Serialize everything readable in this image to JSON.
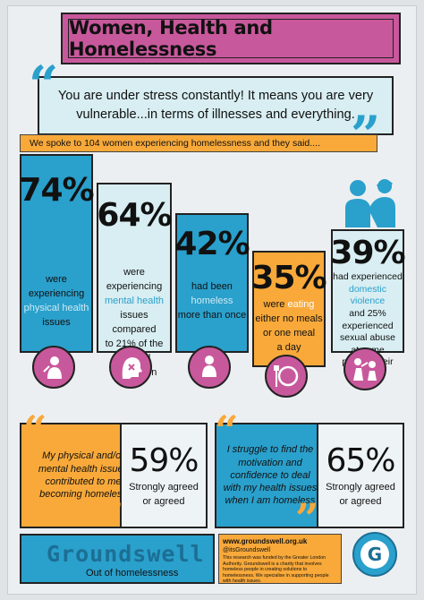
{
  "title": "Women, Health and Homelessness",
  "quote": "You are under stress constantly!  It means you are very vulnerable...in terms of illnesses and everything.",
  "intro": "We spoke to 104 women experiencing homelessness and they said....",
  "columns": [
    {
      "pct": "74%",
      "line1": "were experiencing",
      "highlight": "physical health",
      "line2": "issues"
    },
    {
      "pct": "64%",
      "line1": "were experiencing",
      "highlight": "mental health",
      "line2": "issues compared",
      "line3": "to 21% of the",
      "line4": "general population"
    },
    {
      "pct": "42%",
      "line1": "had been",
      "highlight": "homeless",
      "line2": "more than once"
    },
    {
      "pct": "35%",
      "line1": "were",
      "highlight": "eating",
      "line2": "either no meals",
      "line3": "or one meal",
      "line4": "a day"
    },
    {
      "pct": "39%",
      "line1": "had experienced",
      "highlight": "domestic violence",
      "line2": "and 25%",
      "line3": "experienced",
      "line4": "sexual abuse",
      "line5": "at some",
      "line6": "point in their lives"
    }
  ],
  "panels": [
    {
      "quote": "My physical and/or mental health issues contributed to me becoming homeless",
      "pct": "59%",
      "agree1": "Strongly agreed",
      "agree2": "or agreed"
    },
    {
      "quote": "I struggle to find the motivation and confidence to deal with my health issues when I am homeless",
      "pct": "65%",
      "agree1": "Strongly agreed",
      "agree2": "or agreed"
    }
  ],
  "logo": {
    "name": "Groundswell",
    "tagline": "Out of homelessness"
  },
  "info": {
    "website": "www.groundswell.org.uk",
    "twitter": "@itsGroundswell",
    "funding": "This research was funded by the Greater London Authority. Groundswell is a charity that involves homeless people in creating solutions to homelessness. We specialise in supporting people with health issues."
  },
  "badge_letter": "G",
  "colors": {
    "pink": "#c8589c",
    "blue": "#2aa0cc",
    "orange": "#f8a93a",
    "light": "#d8eef2"
  },
  "icons": [
    "injured-person-icon",
    "mental-health-head-icon",
    "sitting-person-icon",
    "empty-plate-icon",
    "abuse-icon",
    "comforting-people-icon"
  ]
}
